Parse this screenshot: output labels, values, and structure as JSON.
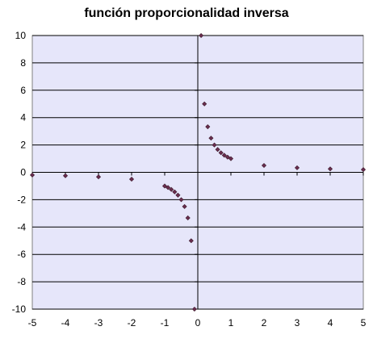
{
  "chart_data": {
    "type": "scatter",
    "title": "función proporcionalidad inversa",
    "xlabel": "",
    "ylabel": "",
    "xlim": [
      -5,
      5
    ],
    "ylim": [
      -10,
      10
    ],
    "xticks": [
      "-5",
      "-4",
      "-3",
      "-2",
      "-1",
      "0",
      "1",
      "2",
      "3",
      "4",
      "5"
    ],
    "yticks": [
      "10",
      "8",
      "6",
      "4",
      "2",
      "0",
      "-2",
      "-4",
      "-6",
      "-8",
      "-10"
    ],
    "grid": "horizontal",
    "legend": "none",
    "colors": {
      "plot_background": "#e6e6fa",
      "marker": "#6b2d4f",
      "grid": "#000000"
    },
    "series": [
      {
        "x": [
          -5,
          -4,
          -3,
          -2,
          -1,
          -0.9,
          -0.8,
          -0.7,
          -0.6,
          -0.5,
          -0.4,
          -0.3,
          -0.2,
          -0.1,
          0.1,
          0.2,
          0.3,
          0.4,
          0.5,
          0.6,
          0.7,
          0.8,
          0.9,
          1,
          2,
          3,
          4,
          5
        ],
        "y": [
          -0.2,
          -0.25,
          -0.33,
          -0.5,
          -1,
          -1.11,
          -1.25,
          -1.43,
          -1.67,
          -2,
          -2.5,
          -3.33,
          -5,
          -10,
          10,
          5,
          3.33,
          2.5,
          2,
          1.67,
          1.43,
          1.25,
          1.11,
          1,
          0.5,
          0.33,
          0.25,
          0.2
        ]
      }
    ]
  }
}
